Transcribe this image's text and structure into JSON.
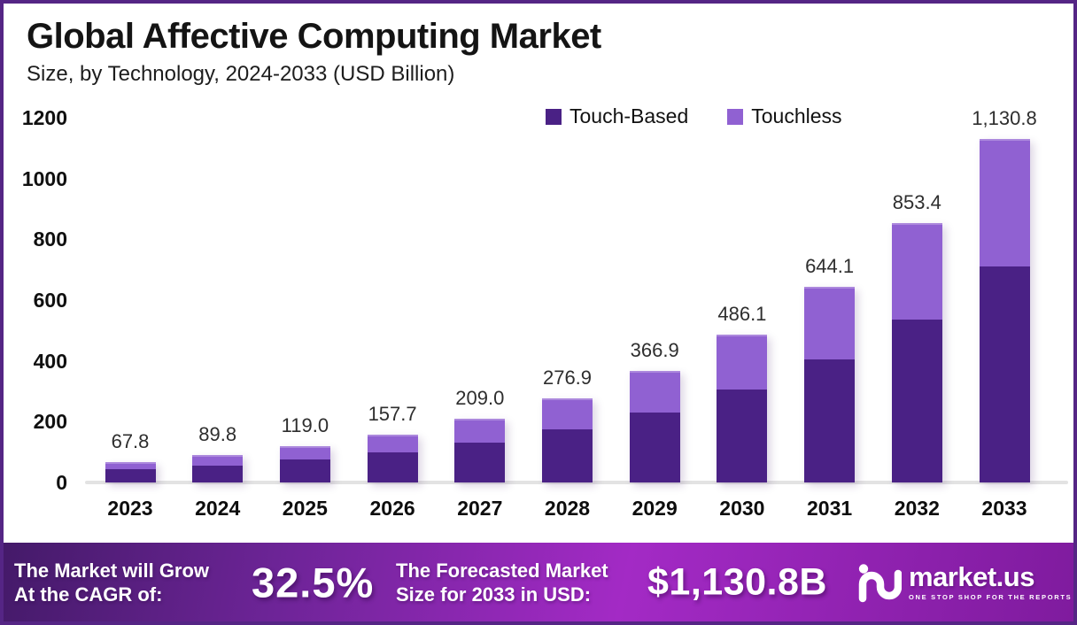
{
  "header": {
    "title": "Global Affective Computing Market",
    "subtitle": "Size, by Technology, 2024-2033 (USD Billion)"
  },
  "legend": {
    "items": [
      {
        "label": "Touch-Based",
        "color": "#4a2185"
      },
      {
        "label": "Touchless",
        "color": "#9061d2"
      }
    ]
  },
  "chart_data": {
    "type": "bar",
    "stacked": true,
    "title": "Global Affective Computing Market Size, by Technology, 2024-2033 (USD Billion)",
    "categories": [
      "2023",
      "2024",
      "2025",
      "2026",
      "2027",
      "2028",
      "2029",
      "2030",
      "2031",
      "2032",
      "2033"
    ],
    "series": [
      {
        "name": "Touch-Based",
        "color": "#4a2185",
        "values": [
          42.6,
          56.5,
          74.9,
          99.2,
          131.5,
          174.2,
          230.8,
          305.8,
          405.1,
          536.8,
          711.3
        ]
      },
      {
        "name": "Touchless",
        "color": "#9061d2",
        "values": [
          25.2,
          33.3,
          44.1,
          58.5,
          77.5,
          102.7,
          136.1,
          180.3,
          239.0,
          316.6,
          419.5
        ]
      }
    ],
    "totals": [
      67.8,
      89.8,
      119.0,
      157.7,
      209.0,
      276.9,
      366.9,
      486.1,
      644.1,
      853.4,
      1130.8
    ],
    "total_labels": [
      "67.8",
      "89.8",
      "119.0",
      "157.7",
      "209.0",
      "276.9",
      "366.9",
      "486.1",
      "644.1",
      "853.4",
      "1,130.8"
    ],
    "xlabel": "",
    "ylabel": "",
    "ylim": [
      0,
      1200
    ],
    "yticks": [
      "0",
      "200",
      "400",
      "600",
      "800",
      "1000",
      "1200"
    ],
    "grid": false,
    "legend_position": "top-right"
  },
  "banner": {
    "cagr_label_line1": "The Market will Grow",
    "cagr_label_line2": "At the CAGR of:",
    "cagr_value": "32.5%",
    "forecast_label_line1": "The Forecasted Market",
    "forecast_label_line2": "Size for 2033 in USD:",
    "forecast_value": "$1,130.8B",
    "logo_text": "market.us",
    "logo_tagline": "ONE STOP SHOP FOR THE REPORTS"
  },
  "colors": {
    "border": "#552585",
    "axis_line": "#e3e3e3",
    "banner_gradient": [
      "#441a69",
      "#6d2497",
      "#a32ac5",
      "#7f1b9e"
    ]
  }
}
